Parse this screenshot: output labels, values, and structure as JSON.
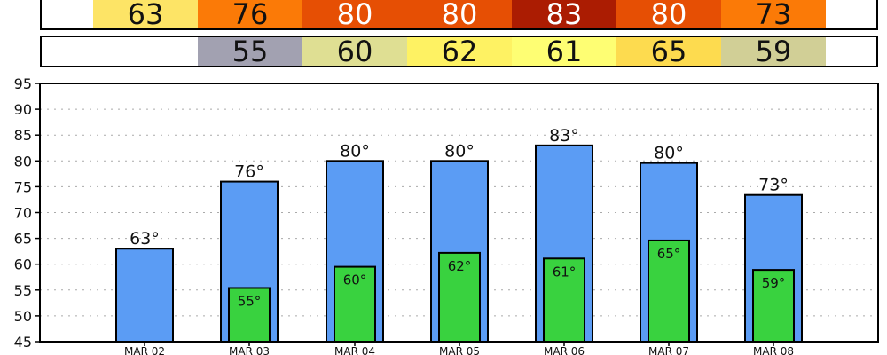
{
  "high_strip": {
    "cells": [
      {
        "text": "63",
        "color": "#fde466",
        "light": false
      },
      {
        "text": "76",
        "color": "#fb7a07",
        "light": false
      },
      {
        "text": "80",
        "color": "#e64f04",
        "light": true
      },
      {
        "text": "80",
        "color": "#e64f04",
        "light": true
      },
      {
        "text": "83",
        "color": "#ab1c02",
        "light": true
      },
      {
        "text": "80",
        "color": "#e64f04",
        "light": true
      },
      {
        "text": "73",
        "color": "#fb7a07",
        "light": false
      }
    ]
  },
  "low_strip": {
    "cells": [
      {
        "text": "",
        "color": "#ffffff",
        "light": false
      },
      {
        "text": "55",
        "color": "#a2a1b1",
        "light": false
      },
      {
        "text": "60",
        "color": "#dfdf93",
        "light": false
      },
      {
        "text": "62",
        "color": "#fef263",
        "light": false
      },
      {
        "text": "61",
        "color": "#fefe73",
        "light": false
      },
      {
        "text": "65",
        "color": "#fddb4f",
        "light": false
      },
      {
        "text": "59",
        "color": "#d1cf96",
        "light": false
      }
    ]
  },
  "chart_data": {
    "type": "bar",
    "categories": [
      "MAR 02",
      "MAR 03",
      "MAR 04",
      "MAR 05",
      "MAR 06",
      "MAR 07",
      "MAR 08"
    ],
    "series": [
      {
        "values": [
          63,
          76,
          80,
          80,
          83,
          79.6,
          73.4
        ],
        "labels": [
          "63°",
          "76°",
          "80°",
          "80°",
          "83°",
          "80°",
          "73°"
        ],
        "color": "#5b9cf4"
      },
      {
        "values": [
          null,
          55.4,
          59.5,
          62.2,
          61.1,
          64.6,
          58.9
        ],
        "labels": [
          "",
          "55°",
          "60°",
          "62°",
          "61°",
          "65°",
          "59°"
        ],
        "color": "#39d23f"
      }
    ],
    "ylim": [
      45,
      95
    ],
    "yticks": [
      45,
      50,
      55,
      60,
      65,
      70,
      75,
      80,
      85,
      90,
      95
    ],
    "grid": true
  }
}
